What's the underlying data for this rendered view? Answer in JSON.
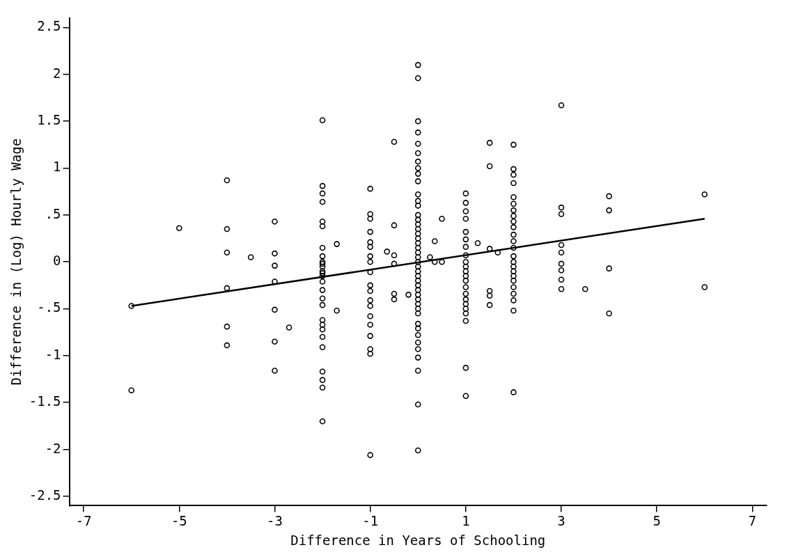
{
  "chart_data": {
    "type": "scatter",
    "xlabel": "Difference in Years of Schooling",
    "ylabel": "Difference in (Log) Hourly Wage",
    "xlim": [
      -7.3,
      7.3
    ],
    "xticks": [
      -7,
      -5,
      -3,
      -1,
      1,
      3,
      5,
      7
    ],
    "ylim": [
      -2.6,
      2.6
    ],
    "yticks": [
      {
        "value": -2.5,
        "label": "-2.5"
      },
      -2,
      {
        "value": -1.5,
        "label": "-1.5"
      },
      -1,
      {
        "value": -0.5,
        "label": "-.5"
      },
      0,
      {
        "value": 0.5,
        "label": ".5"
      },
      1,
      {
        "value": 1.5,
        "label": "1.5"
      },
      2,
      {
        "value": 2.5,
        "label": "2.5"
      }
    ],
    "grid": false,
    "legend": false,
    "series": [
      {
        "marker": "circle",
        "color": "#000000",
        "x": [
          -6,
          -6,
          -5,
          -4,
          -4,
          -4,
          -4,
          -4,
          -4,
          -3.5,
          -3,
          -3,
          -3,
          -3,
          -3,
          -3,
          -3,
          -2.7,
          -2,
          -2,
          -2,
          -2,
          -2,
          -2,
          -2,
          -2,
          -2,
          -2,
          -2,
          -2,
          -2,
          -2,
          -2,
          -2,
          -2,
          -2,
          -2,
          -2,
          -2,
          -2,
          -2,
          -2,
          -2,
          -2,
          -2,
          -1.7,
          -1.7,
          -1,
          -1,
          -1,
          -1,
          -1,
          -1,
          -1,
          -1,
          -1,
          -1,
          -1,
          -1,
          -1,
          -1,
          -1,
          -1,
          -1,
          -1,
          -1,
          -0.65,
          -0.5,
          -0.5,
          -0.5,
          -0.5,
          -0.5,
          -0.5,
          -0.2,
          0,
          0,
          0,
          0,
          0,
          0,
          0,
          0,
          0,
          0,
          0,
          0,
          0,
          0,
          0,
          0,
          0,
          0,
          0,
          0,
          0,
          0,
          0,
          0,
          0,
          0,
          0,
          0,
          0,
          0,
          0,
          0,
          0,
          0,
          0,
          0,
          0,
          0,
          0,
          0,
          0,
          0,
          0,
          0,
          0.25,
          0.35,
          0.35,
          0.5,
          0.5,
          1,
          1,
          1,
          1,
          1,
          1,
          1,
          1,
          1,
          1,
          1,
          1,
          1,
          1,
          1,
          1,
          1,
          1,
          1,
          1,
          1,
          1,
          1.25,
          1.5,
          1.5,
          1.5,
          1.5,
          1.5,
          1.5,
          1.67,
          2,
          2,
          2,
          2,
          2,
          2,
          2,
          2,
          2,
          2,
          2,
          2,
          2,
          2,
          2,
          2,
          2,
          2,
          2,
          2,
          2,
          2,
          2,
          2,
          3,
          3,
          3,
          3,
          3,
          3,
          3,
          3,
          3,
          3.5,
          4,
          4,
          4,
          4,
          6,
          6
        ],
        "values": [
          -0.47,
          -1.37,
          0.36,
          0.87,
          0.35,
          0.1,
          -0.28,
          -0.69,
          -0.89,
          0.05,
          0.43,
          0.09,
          -0.04,
          -0.21,
          -0.51,
          -0.85,
          -1.16,
          -0.7,
          1.51,
          0.81,
          0.73,
          0.64,
          0.43,
          0.38,
          0.15,
          0.06,
          -0.02,
          -0.1,
          -0.15,
          -0.21,
          -0.3,
          -0.39,
          -0.46,
          -0.62,
          -0.67,
          -0.72,
          -0.8,
          -0.91,
          -1.17,
          -1.26,
          -1.34,
          -1.7,
          0.0,
          -0.05,
          -0.12,
          0.19,
          -0.52,
          0.78,
          0.51,
          0.46,
          0.32,
          0.21,
          0.16,
          0.06,
          0,
          -0.11,
          -0.25,
          -0.31,
          -0.41,
          -0.47,
          -0.58,
          -0.67,
          -0.79,
          -0.93,
          -0.98,
          -2.06,
          0.11,
          1.28,
          0.39,
          0.07,
          -0.02,
          -0.34,
          -0.4,
          -0.35,
          2.1,
          1.96,
          1.5,
          1.38,
          1.26,
          1.16,
          1.07,
          1.0,
          0.94,
          0.86,
          0.72,
          0.65,
          0.6,
          0.5,
          0.45,
          0.4,
          0.35,
          0.3,
          0.25,
          0.2,
          0.15,
          0.1,
          0.05,
          0,
          -0.05,
          -0.1,
          -0.15,
          -0.2,
          -0.25,
          -0.3,
          -0.35,
          -0.4,
          -0.45,
          -0.5,
          -0.55,
          -0.66,
          -0.71,
          -0.78,
          -0.86,
          -0.93,
          -1.02,
          -1.16,
          -1.52,
          -2.01,
          0.05,
          0,
          0.22,
          0,
          0.46,
          0.73,
          0.63,
          0.54,
          0.46,
          0.32,
          0.24,
          0.16,
          0.07,
          0,
          -0.05,
          -0.1,
          -0.15,
          -0.2,
          -0.27,
          -0.34,
          -0.4,
          -0.45,
          -0.5,
          -0.55,
          -0.63,
          -1.13,
          -1.43,
          0.2,
          1.27,
          1.02,
          0.14,
          -0.31,
          -0.36,
          -0.46,
          0.1,
          1.25,
          0.99,
          0.93,
          0.84,
          0.69,
          0.62,
          0.55,
          0.49,
          0.43,
          0.37,
          0.29,
          0.22,
          0.15,
          0.06,
          0,
          -0.05,
          -0.1,
          -0.15,
          -0.2,
          -0.27,
          -0.34,
          -0.41,
          -0.52,
          -1.39,
          1.67,
          0.58,
          0.51,
          0.18,
          0.1,
          -0.02,
          -0.09,
          -0.19,
          -0.29,
          -0.29,
          0.7,
          0.55,
          -0.07,
          -0.55,
          0.72,
          -0.27
        ]
      },
      {
        "type": "line",
        "marker": "none",
        "color": "#000000",
        "x": [
          -6,
          6
        ],
        "values": [
          -0.47,
          0.46
        ]
      }
    ]
  }
}
